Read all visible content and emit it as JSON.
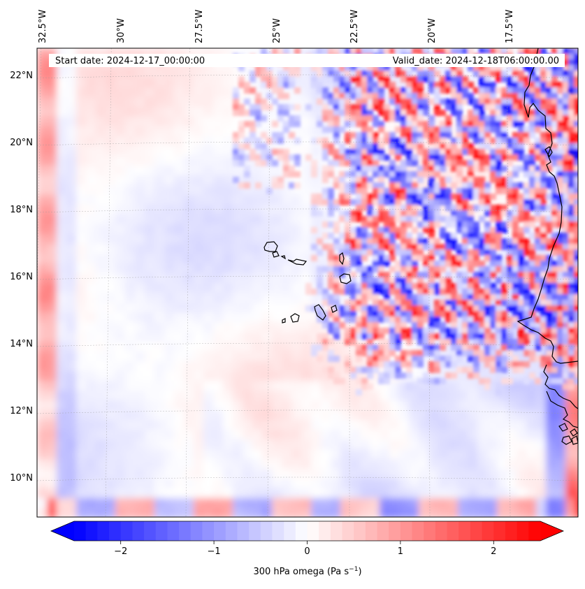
{
  "map": {
    "start_label": "Start date: 2024-12-17_00:00:00",
    "valid_label": "Valid_date: 2024-12-18T06:00:00.00",
    "lon_ticks": [
      "32.5°W",
      "30°W",
      "27.5°W",
      "25°W",
      "22.5°W",
      "20°W",
      "17.5°W"
    ],
    "lat_ticks": [
      "22°N",
      "20°N",
      "18°N",
      "16°N",
      "14°N",
      "12°N",
      "10°N"
    ],
    "colors": {
      "negative": "#0000ff",
      "zero": "#ffffff",
      "positive": "#ff0000",
      "coast": "#000000"
    }
  },
  "colorbar": {
    "min": -2.75,
    "max": 2.75,
    "ticks": [
      {
        "value": -2,
        "label": "−2"
      },
      {
        "value": -1,
        "label": "−1"
      },
      {
        "value": 0,
        "label": "0"
      },
      {
        "value": 1,
        "label": "1"
      },
      {
        "value": 2,
        "label": "2"
      }
    ],
    "label": "300 hPa omega (Pa s",
    "label_sup": "−1",
    "label_end": ")"
  }
}
